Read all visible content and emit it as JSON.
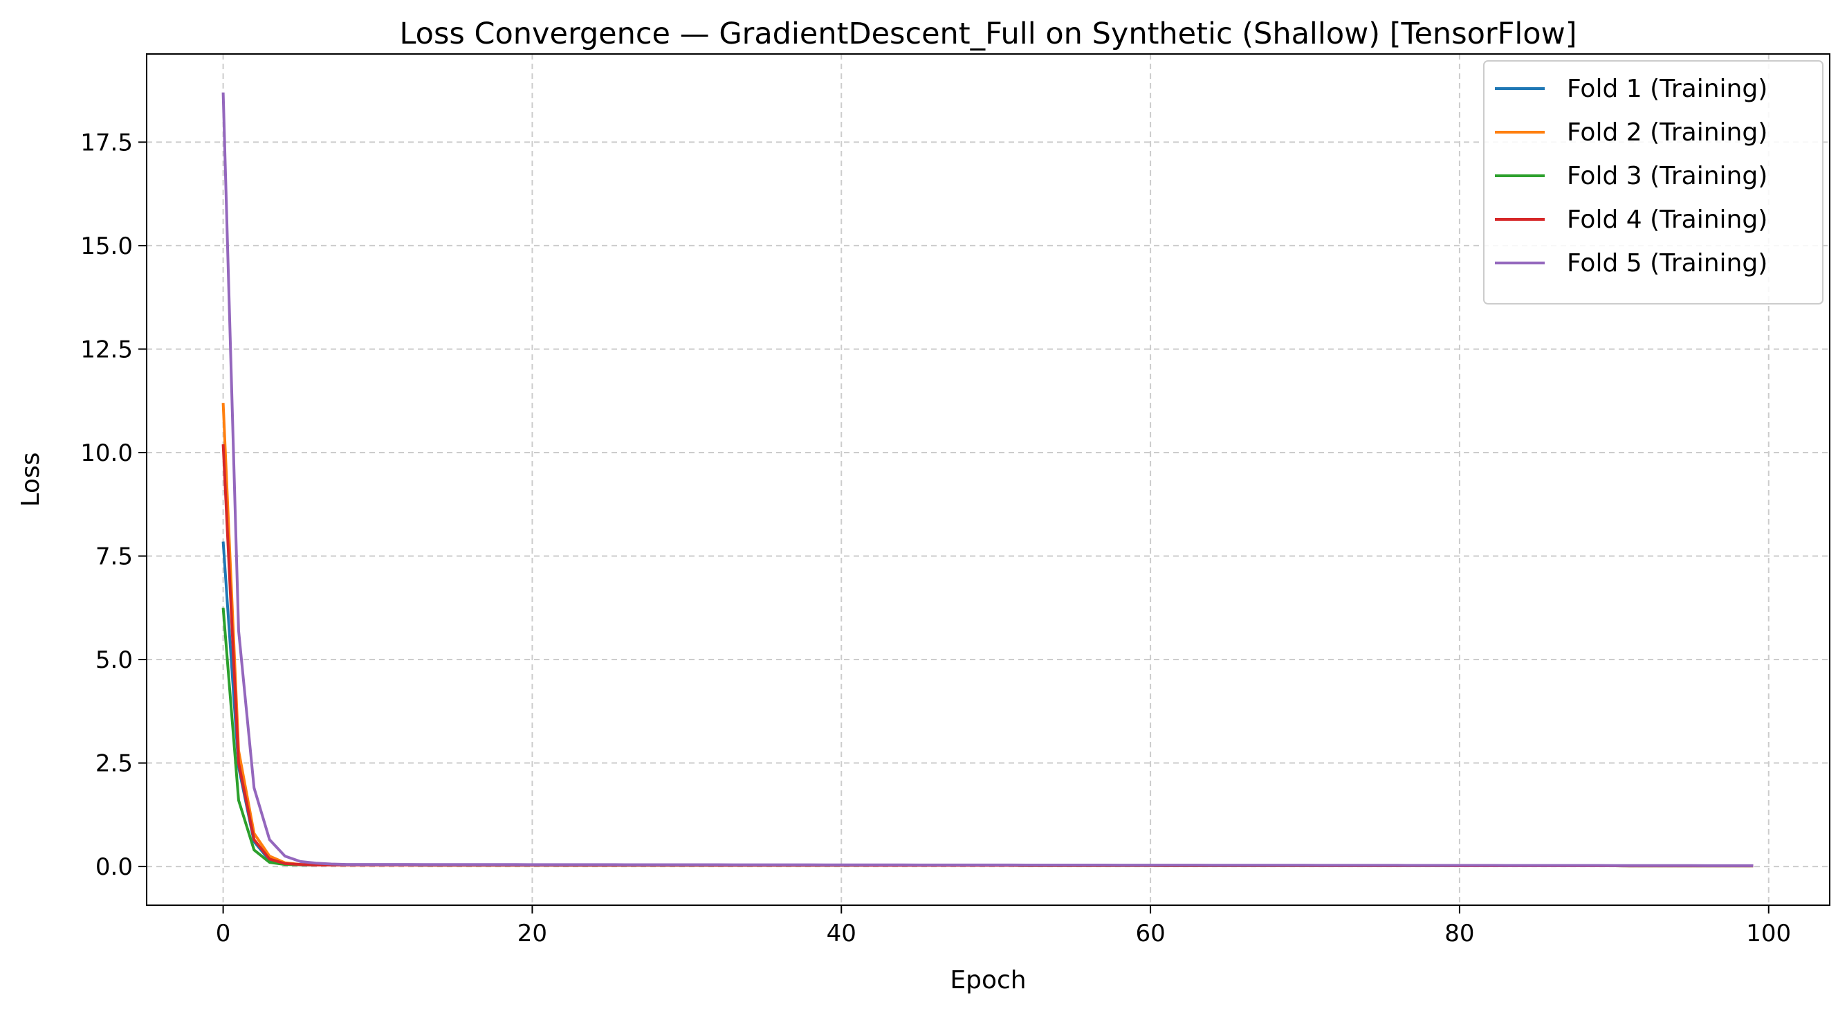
{
  "chart_data": {
    "type": "line",
    "title": "Loss Convergence — GradientDescent_Full on Synthetic (Shallow) [TensorFlow]",
    "xlabel": "Epoch",
    "ylabel": "Loss",
    "xlim": [
      -4.95,
      103.95
    ],
    "ylim": [
      -0.935,
      19.63
    ],
    "xticks": [
      0,
      20,
      40,
      60,
      80,
      100
    ],
    "xtick_labels": [
      "0",
      "20",
      "40",
      "60",
      "80",
      "100"
    ],
    "yticks": [
      0.0,
      2.5,
      5.0,
      7.5,
      10.0,
      12.5,
      15.0,
      17.5
    ],
    "ytick_labels": [
      "0.0",
      "2.5",
      "5.0",
      "7.5",
      "10.0",
      "12.5",
      "15.0",
      "17.5"
    ],
    "grid": true,
    "grid_style": "dashed",
    "legend_position": "top-right",
    "x_range": [
      0,
      99
    ],
    "series": [
      {
        "name": "Fold 1 (Training)",
        "color": "#1f77b4",
        "head": [
          7.85,
          2.4,
          0.6,
          0.15,
          0.06,
          0.04
        ],
        "tail_start": 0.035,
        "tail_end": 0.015
      },
      {
        "name": "Fold 2 (Training)",
        "color": "#ff7f0e",
        "head": [
          11.2,
          2.8,
          0.8,
          0.25,
          0.09,
          0.05,
          0.04
        ],
        "tail_start": 0.035,
        "tail_end": 0.015
      },
      {
        "name": "Fold 3 (Training)",
        "color": "#2ca02c",
        "head": [
          6.25,
          1.6,
          0.4,
          0.1,
          0.05,
          0.04
        ],
        "tail_start": 0.035,
        "tail_end": 0.015
      },
      {
        "name": "Fold 4 (Training)",
        "color": "#d62728",
        "head": [
          10.2,
          2.5,
          0.65,
          0.18,
          0.07,
          0.05
        ],
        "tail_start": 0.035,
        "tail_end": 0.015
      },
      {
        "name": "Fold 5 (Training)",
        "color": "#9467bd",
        "head": [
          18.7,
          5.7,
          1.9,
          0.65,
          0.25,
          0.12,
          0.08,
          0.06
        ],
        "tail_start": 0.05,
        "tail_end": 0.02
      }
    ]
  }
}
